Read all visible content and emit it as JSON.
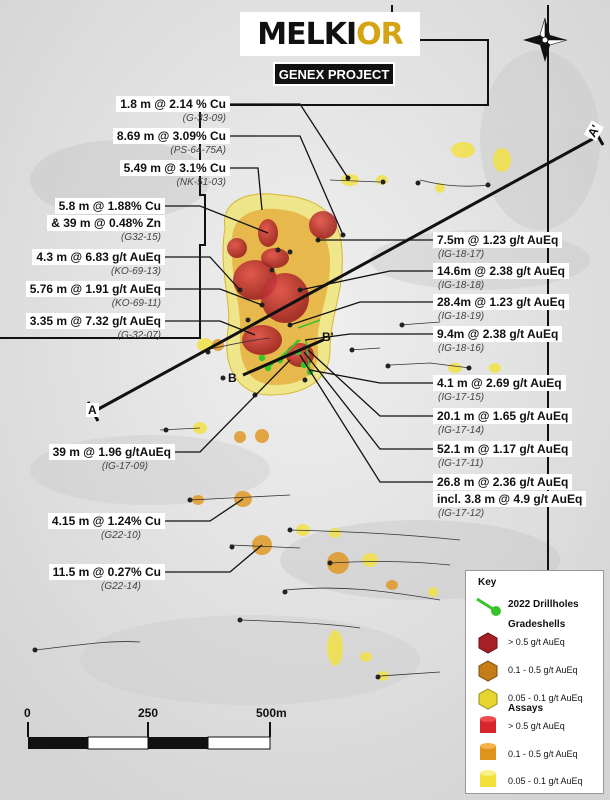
{
  "header": {
    "logo_a": "MELKI",
    "logo_b": "OR",
    "project": "GENEX PROJECT"
  },
  "section": {
    "a": "A",
    "a_prime": "A'",
    "b": "B",
    "b_prime": "B'"
  },
  "left_labels": [
    {
      "main": "1.8 m @ 2.14 % Cu",
      "hole": "(G-33-09)"
    },
    {
      "main": "8.69 m @ 3.09% Cu",
      "hole": "(PS-64-75A)"
    },
    {
      "main": "5.49 m @ 3.1% Cu",
      "hole": "(NK-51-03)"
    },
    {
      "main": "5.8 m @ 1.88% Cu",
      "main2": "& 39 m @ 0.48% Zn",
      "hole": "(G32-15)"
    },
    {
      "main": "4.3 m @ 6.83 g/t AuEq",
      "hole": "(KO-69-13)"
    },
    {
      "main": "5.76 m @ 1.91 g/t AuEq",
      "hole": "(KO-69-11)"
    },
    {
      "main": "3.35 m @ 7.32 g/t AuEq",
      "hole": "(G-32-07)"
    },
    {
      "main": "39 m @ 1.96 g/tAuEq",
      "hole": "(IG-17-09)"
    },
    {
      "main": "4.15 m @ 1.24% Cu",
      "hole": "(G22-10)"
    },
    {
      "main": "11.5 m @ 0.27% Cu",
      "hole": "(G22-14)"
    }
  ],
  "right_labels": [
    {
      "main": "7.5m @ 1.23 g/t AuEq",
      "hole": "(IG-18-17)"
    },
    {
      "main": "14.6m @ 2.38 g/t AuEq",
      "hole": "(IG-18-18)"
    },
    {
      "main": "28.4m @ 1.23 g/t AuEq",
      "hole": "(IG-18-19)"
    },
    {
      "main": "9.4m @ 2.38 g/t AuEq",
      "hole": "(IG-18-16)"
    },
    {
      "main": "4.1 m @ 2.69 g/t AuEq",
      "hole": "(IG-17-15)"
    },
    {
      "main": "20.1 m @ 1.65 g/t AuEq",
      "hole": "(IG-17-14)"
    },
    {
      "main": "52.1 m @ 1.17 g/t AuEq",
      "hole": "(IG-17-11)"
    },
    {
      "main": "26.8 m @ 2.36 g/t AuEq",
      "main2": "incl. 3.8 m @ 4.9 g/t AuEq",
      "hole": "(IG-17-12)"
    }
  ],
  "scale": {
    "ticks": [
      "0",
      "250",
      "500m"
    ]
  },
  "key": {
    "title": "Key",
    "drillholes": "2022 Drillholes",
    "gradeshells_title": "Gradeshells",
    "gradeshells": [
      "> 0.5 g/t AuEq",
      "0.1 - 0.5 g/t AuEq",
      "0.05 - 0.1 g/t AuEq"
    ],
    "assays_title": "Assays",
    "assays": [
      "> 0.5 g/t AuEq",
      "0.1 - 0.5 g/t AuEq",
      "0.05 - 0.1 g/t AuEq"
    ],
    "colors": {
      "high": "#c1272d",
      "mid": "#e0941a",
      "low": "#f2e13c",
      "drill": "#39c32a"
    }
  }
}
